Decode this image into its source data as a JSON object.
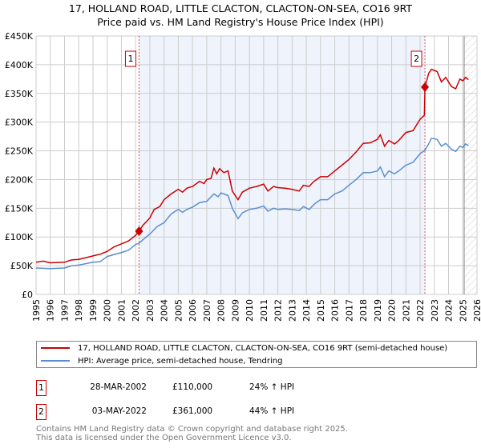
{
  "chart_data": {
    "type": "line",
    "title": "17, HOLLAND ROAD, LITTLE CLACTON, CLACTON-ON-SEA, CO16 9RT",
    "subtitle": "Price paid vs. HM Land Registry's House Price Index (HPI)",
    "xlim": [
      1995,
      2026
    ],
    "ylim": [
      0,
      450000
    ],
    "x_ticks": [
      "1995",
      "1996",
      "1997",
      "1998",
      "1999",
      "2000",
      "2001",
      "2002",
      "2003",
      "2004",
      "2005",
      "2006",
      "2007",
      "2008",
      "2009",
      "2010",
      "2011",
      "2012",
      "2013",
      "2014",
      "2015",
      "2016",
      "2017",
      "2018",
      "2019",
      "2020",
      "2021",
      "2022",
      "2023",
      "2024",
      "2025",
      "2026"
    ],
    "y_ticks": [
      {
        "value": 0,
        "label": "£0"
      },
      {
        "value": 50000,
        "label": "£50K"
      },
      {
        "value": 100000,
        "label": "£100K"
      },
      {
        "value": 150000,
        "label": "£150K"
      },
      {
        "value": 200000,
        "label": "£200K"
      },
      {
        "value": 250000,
        "label": "£250K"
      },
      {
        "value": 300000,
        "label": "£300K"
      },
      {
        "value": 350000,
        "label": "£350K"
      },
      {
        "value": 400000,
        "label": "£400K"
      },
      {
        "value": 450000,
        "label": "£450K"
      }
    ],
    "grid": true,
    "shaded_range": [
      2002.24,
      2022.34
    ],
    "forecast_hatch_from": 2025.1,
    "series": [
      {
        "name": "17, HOLLAND ROAD, LITTLE CLACTON, CLACTON-ON-SEA, CO16 9RT (semi-detached house)",
        "color": "#cc0000",
        "x": [
          1995,
          1995.5,
          1996,
          1997,
          1997.5,
          1998,
          1998.5,
          1999,
          1999.5,
          2000,
          2000.5,
          2001,
          2001.5,
          2002,
          2002.24,
          2002.5,
          2003,
          2003.3,
          2003.7,
          2004,
          2004.5,
          2005,
          2005.3,
          2005.6,
          2006,
          2006.5,
          2006.8,
          2007,
          2007.3,
          2007.5,
          2007.7,
          2007.9,
          2008.2,
          2008.5,
          2008.8,
          2009.2,
          2009.5,
          2010,
          2010.5,
          2011,
          2011.3,
          2011.7,
          2012,
          2012.5,
          2013,
          2013.5,
          2013.8,
          2014.2,
          2014.5,
          2015,
          2015.5,
          2016,
          2016.5,
          2017,
          2017.5,
          2018,
          2018.5,
          2019,
          2019.2,
          2019.5,
          2019.8,
          2020.2,
          2020.5,
          2021,
          2021.5,
          2022,
          2022.3,
          2022.34,
          2022.6,
          2022.8,
          2023.2,
          2023.5,
          2023.8,
          2024.2,
          2024.5,
          2024.8,
          2025,
          2025.2,
          2025.4
        ],
        "y": [
          56000,
          58000,
          55000,
          56000,
          60000,
          61000,
          64000,
          67000,
          70000,
          75000,
          83000,
          88000,
          93000,
          103000,
          110000,
          120000,
          133000,
          148000,
          153000,
          165000,
          175000,
          183000,
          178000,
          185000,
          188000,
          197000,
          193000,
          200000,
          202000,
          220000,
          210000,
          219000,
          212000,
          215000,
          180000,
          165000,
          178000,
          185000,
          188000,
          192000,
          180000,
          188000,
          186000,
          185000,
          183000,
          180000,
          190000,
          188000,
          196000,
          205000,
          205000,
          215000,
          225000,
          235000,
          248000,
          263000,
          264000,
          270000,
          278000,
          258000,
          268000,
          262000,
          268000,
          282000,
          285000,
          305000,
          312000,
          361000,
          385000,
          392000,
          388000,
          370000,
          378000,
          362000,
          358000,
          375000,
          372000,
          378000,
          374000
        ]
      },
      {
        "name": "HPI: Average price, semi-detached house, Tendring",
        "color": "#5b8fd0",
        "x": [
          1995,
          1996,
          1997,
          1997.5,
          1998,
          1999,
          1999.5,
          2000,
          2001,
          2001.5,
          2002,
          2002.24,
          2002.5,
          2003,
          2003.5,
          2004,
          2004.5,
          2005,
          2005.3,
          2005.6,
          2006,
          2006.5,
          2007,
          2007.5,
          2007.8,
          2008,
          2008.5,
          2008.8,
          2009.2,
          2009.5,
          2010,
          2010.5,
          2011,
          2011.3,
          2011.7,
          2012,
          2012.5,
          2013,
          2013.5,
          2013.8,
          2014.2,
          2014.6,
          2015,
          2015.5,
          2016,
          2016.5,
          2017,
          2017.5,
          2018,
          2018.5,
          2019,
          2019.2,
          2019.5,
          2019.8,
          2020.2,
          2020.5,
          2021,
          2021.5,
          2022,
          2022.34,
          2022.6,
          2022.8,
          2023.2,
          2023.5,
          2023.8,
          2024.2,
          2024.5,
          2024.8,
          2025,
          2025.2,
          2025.4
        ],
        "y": [
          46000,
          45000,
          46000,
          50000,
          51000,
          56000,
          57000,
          66000,
          73000,
          77000,
          87000,
          89000,
          95000,
          105000,
          118000,
          125000,
          140000,
          148000,
          143000,
          148000,
          152000,
          160000,
          162000,
          175000,
          170000,
          177000,
          172000,
          150000,
          132000,
          142000,
          148000,
          150000,
          154000,
          145000,
          150000,
          148000,
          149000,
          148000,
          146000,
          153000,
          148000,
          158000,
          165000,
          165000,
          175000,
          180000,
          190000,
          200000,
          212000,
          212000,
          215000,
          222000,
          205000,
          215000,
          210000,
          215000,
          225000,
          230000,
          245000,
          251000,
          262000,
          272000,
          270000,
          258000,
          263000,
          253000,
          249000,
          258000,
          256000,
          262000,
          259000
        ]
      }
    ],
    "annotations": [
      {
        "label": "1",
        "x": 2002.24,
        "y": 110000
      },
      {
        "label": "2",
        "x": 2022.34,
        "y": 361000
      }
    ],
    "legend_position": "bottom"
  },
  "transactions": [
    {
      "num": "1",
      "date": "28-MAR-2002",
      "price": "£110,000",
      "hpi": "24% ↑ HPI"
    },
    {
      "num": "2",
      "date": "03-MAY-2022",
      "price": "£361,000",
      "hpi": "44% ↑ HPI"
    }
  ],
  "footer": {
    "line1": "Contains HM Land Registry data © Crown copyright and database right 2025.",
    "line2": "This data is licensed under the Open Government Licence v3.0."
  }
}
